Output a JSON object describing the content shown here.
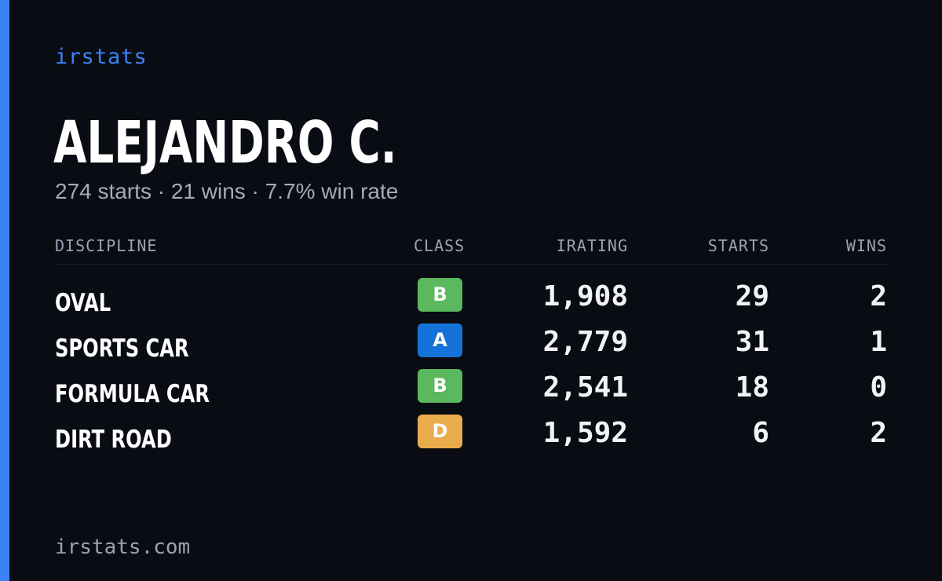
{
  "brand": "irstats",
  "driver": {
    "name": "ALEJANDRO C.",
    "starts_text": "274 starts",
    "wins_text": "21 wins",
    "win_rate_text": "7.7% win rate",
    "separator": "·"
  },
  "table": {
    "headers": {
      "discipline": "DISCIPLINE",
      "class": "CLASS",
      "irating": "IRATING",
      "starts": "STARTS",
      "wins": "WINS"
    },
    "rows": [
      {
        "discipline": "OVAL",
        "class": "B",
        "class_color": "#5bb85e",
        "irating": "1,908",
        "starts": "29",
        "wins": "2"
      },
      {
        "discipline": "SPORTS CAR",
        "class": "A",
        "class_color": "#1473d9",
        "irating": "2,779",
        "starts": "31",
        "wins": "1"
      },
      {
        "discipline": "FORMULA CAR",
        "class": "B",
        "class_color": "#5bb85e",
        "irating": "2,541",
        "starts": "18",
        "wins": "0"
      },
      {
        "discipline": "DIRT ROAD",
        "class": "D",
        "class_color": "#e9ac4c",
        "irating": "1,592",
        "starts": "6",
        "wins": "2"
      }
    ]
  },
  "footer": "irstats.com",
  "colors": {
    "accent": "#3b82f6",
    "background": "#0a0c13",
    "muted_text": "#a3abbd"
  }
}
